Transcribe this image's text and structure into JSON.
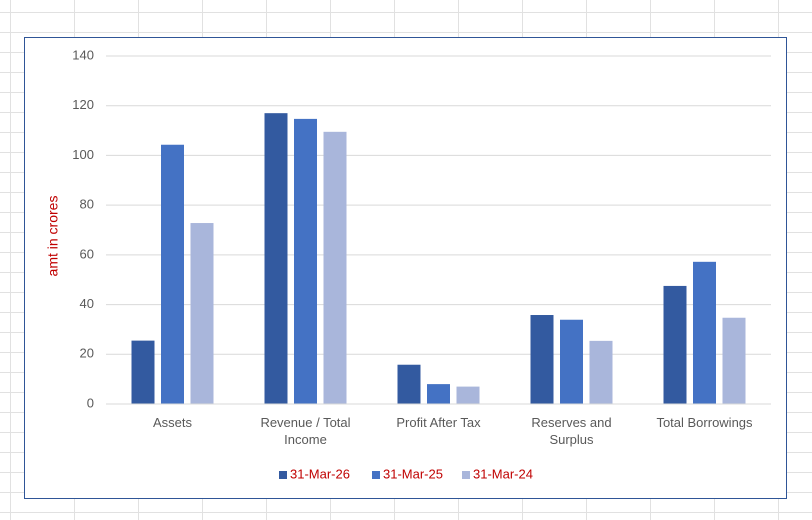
{
  "chart_data": {
    "type": "bar",
    "y_label": "amt in crores",
    "categories": [
      "Assets",
      "Revenue / Total Income",
      "Profit After Tax",
      "Reserves and Surplus",
      "Total Borrowings"
    ],
    "series": [
      {
        "name": "31-Mar-26",
        "color": "#335aa0",
        "values": [
          25.5,
          117,
          15.8,
          35.8,
          47.5
        ]
      },
      {
        "name": "31-Mar-25",
        "color": "#4472c4",
        "values": [
          104.3,
          114.7,
          8,
          33.9,
          57.2
        ]
      },
      {
        "name": "31-Mar-24",
        "color": "#a9b6db",
        "values": [
          72.8,
          109.5,
          7,
          25.4,
          34.7
        ]
      }
    ],
    "ylim": [
      0,
      140
    ],
    "yticks": [
      0,
      20,
      40,
      60,
      80,
      100,
      120,
      140
    ],
    "grid": true,
    "legend": "bottom"
  }
}
